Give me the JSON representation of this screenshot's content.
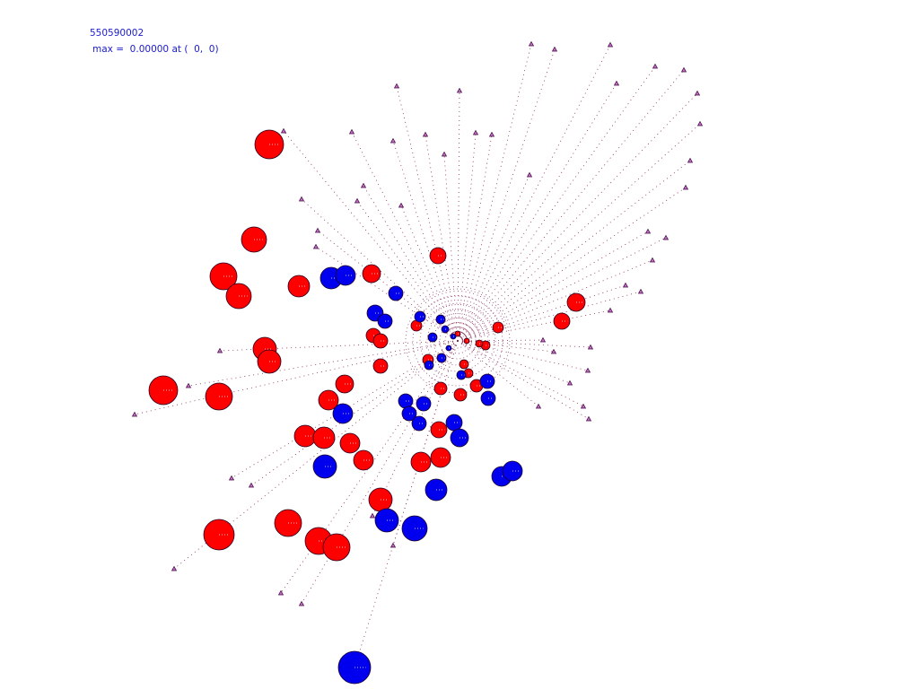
{
  "header": {
    "id": "550590002",
    "status": "max =  0.00000 at (  0,  0)"
  }
}
